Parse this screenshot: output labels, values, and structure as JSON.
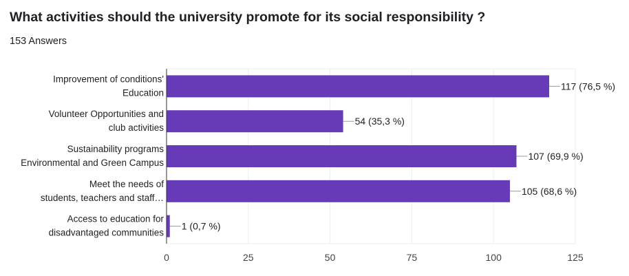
{
  "header": {
    "title": "What activities should the university promote for its social responsibility ?",
    "answers": "153 Answers"
  },
  "colors": {
    "bar": "#673ab7",
    "grid": "#ececec",
    "axis": "#333333",
    "leader": "#999999"
  },
  "chart_data": {
    "type": "bar",
    "orientation": "horizontal",
    "categories": [
      [
        "Improvement of conditions'",
        "Education"
      ],
      [
        "Volunteer Opportunities and",
        "club activities"
      ],
      [
        "Sustainability programs",
        "Environmental and Green Campus"
      ],
      [
        "Meet the needs of",
        "students, teachers and staff…"
      ],
      [
        "Access to education for",
        "disadvantaged communities"
      ]
    ],
    "values": [
      117,
      54,
      107,
      105,
      1
    ],
    "value_labels": [
      "117 (76,5 %)",
      "54 (35,3 %)",
      "107 (69,9 %)",
      "105 (68,6 %)",
      "1 (0,7 %)"
    ],
    "xlim": [
      0,
      125
    ],
    "xticks": [
      0,
      25,
      50,
      75,
      100,
      125
    ],
    "grid": true
  }
}
